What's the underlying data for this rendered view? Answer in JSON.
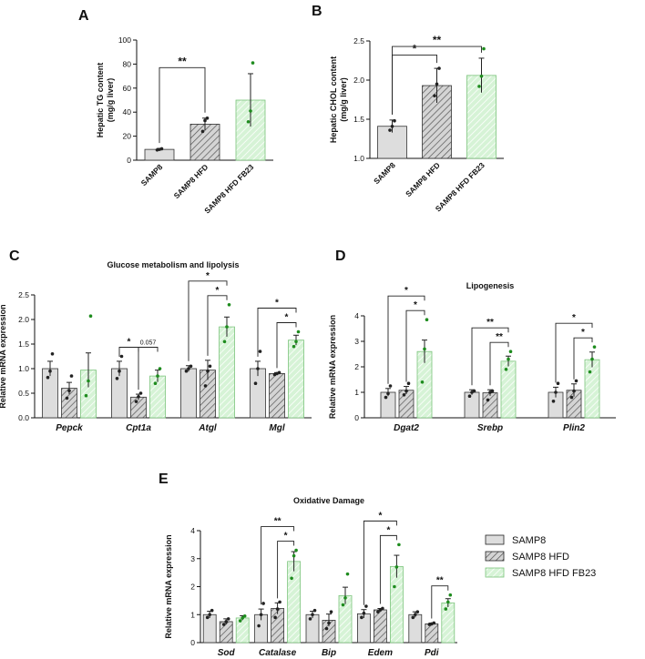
{
  "colors": {
    "samp8": "#dddddd",
    "hfd": "#cfcfcf",
    "fb23": "#c8eec8",
    "fb23_stroke": "#7cc47c",
    "dot_green": "#1e8c1e",
    "dot_black": "#222222",
    "axis": "#111111"
  },
  "legend": {
    "items": [
      "SAMP8",
      "SAMP8 HFD",
      "SAMP8 HFD FB23"
    ]
  },
  "chart_data": [
    {
      "panel": "A",
      "type": "bar",
      "title": "",
      "ylabel": "Hepatic TG content\n(mg/g liver)",
      "ylim": [
        0,
        100
      ],
      "yticks": [
        "0",
        "20",
        "40",
        "60",
        "80",
        "100"
      ],
      "categories": [
        "SAMP8",
        "SAMP8 HFD",
        "SAMP8 HFD FB23"
      ],
      "values": [
        9,
        30,
        50
      ],
      "errors": [
        0.8,
        5,
        22
      ],
      "points": [
        [
          8.5,
          9,
          9.5
        ],
        [
          24,
          33,
          35
        ],
        [
          32,
          41,
          81
        ]
      ],
      "significance": [
        {
          "from": 0,
          "to": 1,
          "label": "**"
        }
      ]
    },
    {
      "panel": "B",
      "type": "bar",
      "title": "",
      "ylabel": "Hepatic CHOL content\n(mg/g liver)",
      "ylim": [
        1.0,
        2.5
      ],
      "yticks": [
        "1.0",
        "1.5",
        "2.0",
        "2.5"
      ],
      "categories": [
        "SAMP8",
        "SAMP8 HFD",
        "SAMP8 HFD FB23"
      ],
      "values": [
        1.41,
        1.93,
        2.06
      ],
      "errors": [
        0.08,
        0.22,
        0.22
      ],
      "points": [
        [
          1.36,
          1.41,
          1.48
        ],
        [
          1.8,
          1.95,
          2.15
        ],
        [
          1.92,
          2.05,
          2.4
        ]
      ],
      "significance": [
        {
          "from": 0,
          "to": 1,
          "label": "*"
        },
        {
          "from": 0,
          "to": 2,
          "label": "**"
        }
      ]
    },
    {
      "panel": "C",
      "type": "bar",
      "title": "Glucose metabolism and lipolysis",
      "ylabel": "Relative mRNA expression",
      "ylim": [
        0,
        2.5
      ],
      "yticks": [
        "0.0",
        "0.5",
        "1.0",
        "1.5",
        "2.0",
        "2.5"
      ],
      "categories": [
        "Pepck",
        "Cpt1a",
        "Atgl",
        "Mgl"
      ],
      "series": [
        {
          "name": "SAMP8",
          "values": [
            1.0,
            1.0,
            1.0,
            1.0
          ],
          "errors": [
            0.15,
            0.15,
            0.06,
            0.15
          ],
          "points": [
            [
              0.82,
              0.95,
              1.3
            ],
            [
              0.8,
              0.95,
              1.25
            ],
            [
              0.95,
              1.0,
              1.05
            ],
            [
              0.7,
              1.0,
              1.35
            ]
          ]
        },
        {
          "name": "SAMP8 HFD",
          "values": [
            0.6,
            0.42,
            0.97,
            0.9
          ],
          "errors": [
            0.12,
            0.06,
            0.2,
            0.02
          ],
          "points": [
            [
              0.4,
              0.55,
              0.85
            ],
            [
              0.33,
              0.43,
              0.5
            ],
            [
              0.65,
              0.95,
              1.05
            ],
            [
              0.88,
              0.9,
              0.92
            ]
          ]
        },
        {
          "name": "SAMP8 HFD FB23",
          "values": [
            0.97,
            0.85,
            1.85,
            1.58
          ],
          "errors": [
            0.35,
            0.12,
            0.2,
            0.1
          ],
          "points": [
            [
              0.45,
              0.75,
              2.07
            ],
            [
              0.7,
              0.85,
              1.0
            ],
            [
              1.55,
              1.85,
              2.3
            ],
            [
              1.45,
              1.55,
              1.75
            ]
          ]
        }
      ],
      "annotations": [
        {
          "category": 1,
          "from": 0,
          "to": 1,
          "label": "*",
          "level": 0
        },
        {
          "category": 1,
          "from": 1,
          "to": 2,
          "label": "0.057",
          "level": 0
        },
        {
          "category": 2,
          "from": 1,
          "to": 2,
          "label": "*",
          "level": 0
        },
        {
          "category": 2,
          "from": 0,
          "to": 2,
          "label": "*",
          "level": 1
        },
        {
          "category": 3,
          "from": 1,
          "to": 2,
          "label": "*",
          "level": 0
        },
        {
          "category": 3,
          "from": 0,
          "to": 2,
          "label": "*",
          "level": 1
        }
      ]
    },
    {
      "panel": "D",
      "type": "bar",
      "title": "Lipogenesis",
      "ylabel": "Relative mRNA expression",
      "ylim": [
        0,
        4
      ],
      "yticks": [
        "0",
        "1",
        "2",
        "3",
        "4"
      ],
      "categories": [
        "Dgat2",
        "Srebp",
        "Plin2"
      ],
      "series": [
        {
          "name": "SAMP8",
          "values": [
            1.0,
            1.0,
            1.0
          ],
          "errors": [
            0.15,
            0.1,
            0.2
          ],
          "points": [
            [
              0.8,
              0.95,
              1.25
            ],
            [
              0.85,
              1.0,
              1.05
            ],
            [
              0.65,
              1.0,
              1.35
            ]
          ]
        },
        {
          "name": "SAMP8 HFD",
          "values": [
            1.08,
            0.98,
            1.08
          ],
          "errors": [
            0.15,
            0.12,
            0.25
          ],
          "points": [
            [
              0.9,
              1.05,
              1.35
            ],
            [
              0.7,
              1.0,
              1.05
            ],
            [
              0.8,
              1.05,
              1.45
            ]
          ]
        },
        {
          "name": "SAMP8 HFD FB23",
          "values": [
            2.6,
            2.22,
            2.28
          ],
          "errors": [
            0.45,
            0.2,
            0.3
          ],
          "points": [
            [
              1.4,
              2.7,
              3.85
            ],
            [
              1.9,
              2.3,
              2.6
            ],
            [
              1.8,
              2.3,
              2.78
            ]
          ]
        }
      ],
      "annotations": [
        {
          "category": 0,
          "from": 1,
          "to": 2,
          "label": "*",
          "level": 0
        },
        {
          "category": 0,
          "from": 0,
          "to": 2,
          "label": "*",
          "level": 1
        },
        {
          "category": 1,
          "from": 1,
          "to": 2,
          "label": "**",
          "level": 0
        },
        {
          "category": 1,
          "from": 0,
          "to": 2,
          "label": "**",
          "level": 1
        },
        {
          "category": 2,
          "from": 1,
          "to": 2,
          "label": "*",
          "level": 0
        },
        {
          "category": 2,
          "from": 0,
          "to": 2,
          "label": "*",
          "level": 1
        }
      ]
    },
    {
      "panel": "E",
      "type": "bar",
      "title": "Oxidative Damage",
      "ylabel": "Relative mRNA expression",
      "ylim": [
        0,
        4
      ],
      "yticks": [
        "0",
        "1",
        "2",
        "3",
        "4"
      ],
      "categories": [
        "Sod",
        "Catalase",
        "Bip",
        "Edem",
        "Pdi"
      ],
      "series": [
        {
          "name": "SAMP8",
          "values": [
            1.0,
            1.0,
            1.0,
            1.03,
            1.0
          ],
          "errors": [
            0.12,
            0.2,
            0.12,
            0.15,
            0.1
          ],
          "points": [
            [
              0.9,
              1.0,
              1.15
            ],
            [
              0.6,
              1.0,
              1.4
            ],
            [
              0.85,
              1.0,
              1.15
            ],
            [
              0.9,
              1.05,
              1.3
            ],
            [
              0.9,
              1.0,
              1.1
            ]
          ]
        },
        {
          "name": "SAMP8 HFD",
          "values": [
            0.75,
            1.22,
            0.8,
            1.17,
            0.67
          ],
          "errors": [
            0.1,
            0.2,
            0.22,
            0.05,
            0.03
          ],
          "points": [
            [
              0.65,
              0.75,
              0.85
            ],
            [
              0.9,
              1.2,
              1.45
            ],
            [
              0.5,
              0.7,
              1.1
            ],
            [
              1.1,
              1.17,
              1.22
            ],
            [
              0.65,
              0.67,
              0.7
            ]
          ]
        },
        {
          "name": "SAMP8 HFD FB23",
          "values": [
            0.88,
            2.9,
            1.68,
            2.72,
            1.42
          ],
          "errors": [
            0.08,
            0.35,
            0.3,
            0.4,
            0.15
          ],
          "points": [
            [
              0.78,
              0.88,
              0.95
            ],
            [
              2.3,
              3.1,
              3.3
            ],
            [
              1.35,
              1.6,
              2.45
            ],
            [
              2.0,
              2.7,
              3.5
            ],
            [
              1.2,
              1.45,
              1.7
            ]
          ]
        }
      ],
      "annotations": [
        {
          "category": 1,
          "from": 1,
          "to": 2,
          "label": "*",
          "level": 0
        },
        {
          "category": 1,
          "from": 0,
          "to": 2,
          "label": "**",
          "level": 1
        },
        {
          "category": 3,
          "from": 1,
          "to": 2,
          "label": "*",
          "level": 0
        },
        {
          "category": 3,
          "from": 0,
          "to": 2,
          "label": "*",
          "level": 1
        },
        {
          "category": 4,
          "from": 1,
          "to": 2,
          "label": "**",
          "level": 0
        }
      ]
    }
  ]
}
